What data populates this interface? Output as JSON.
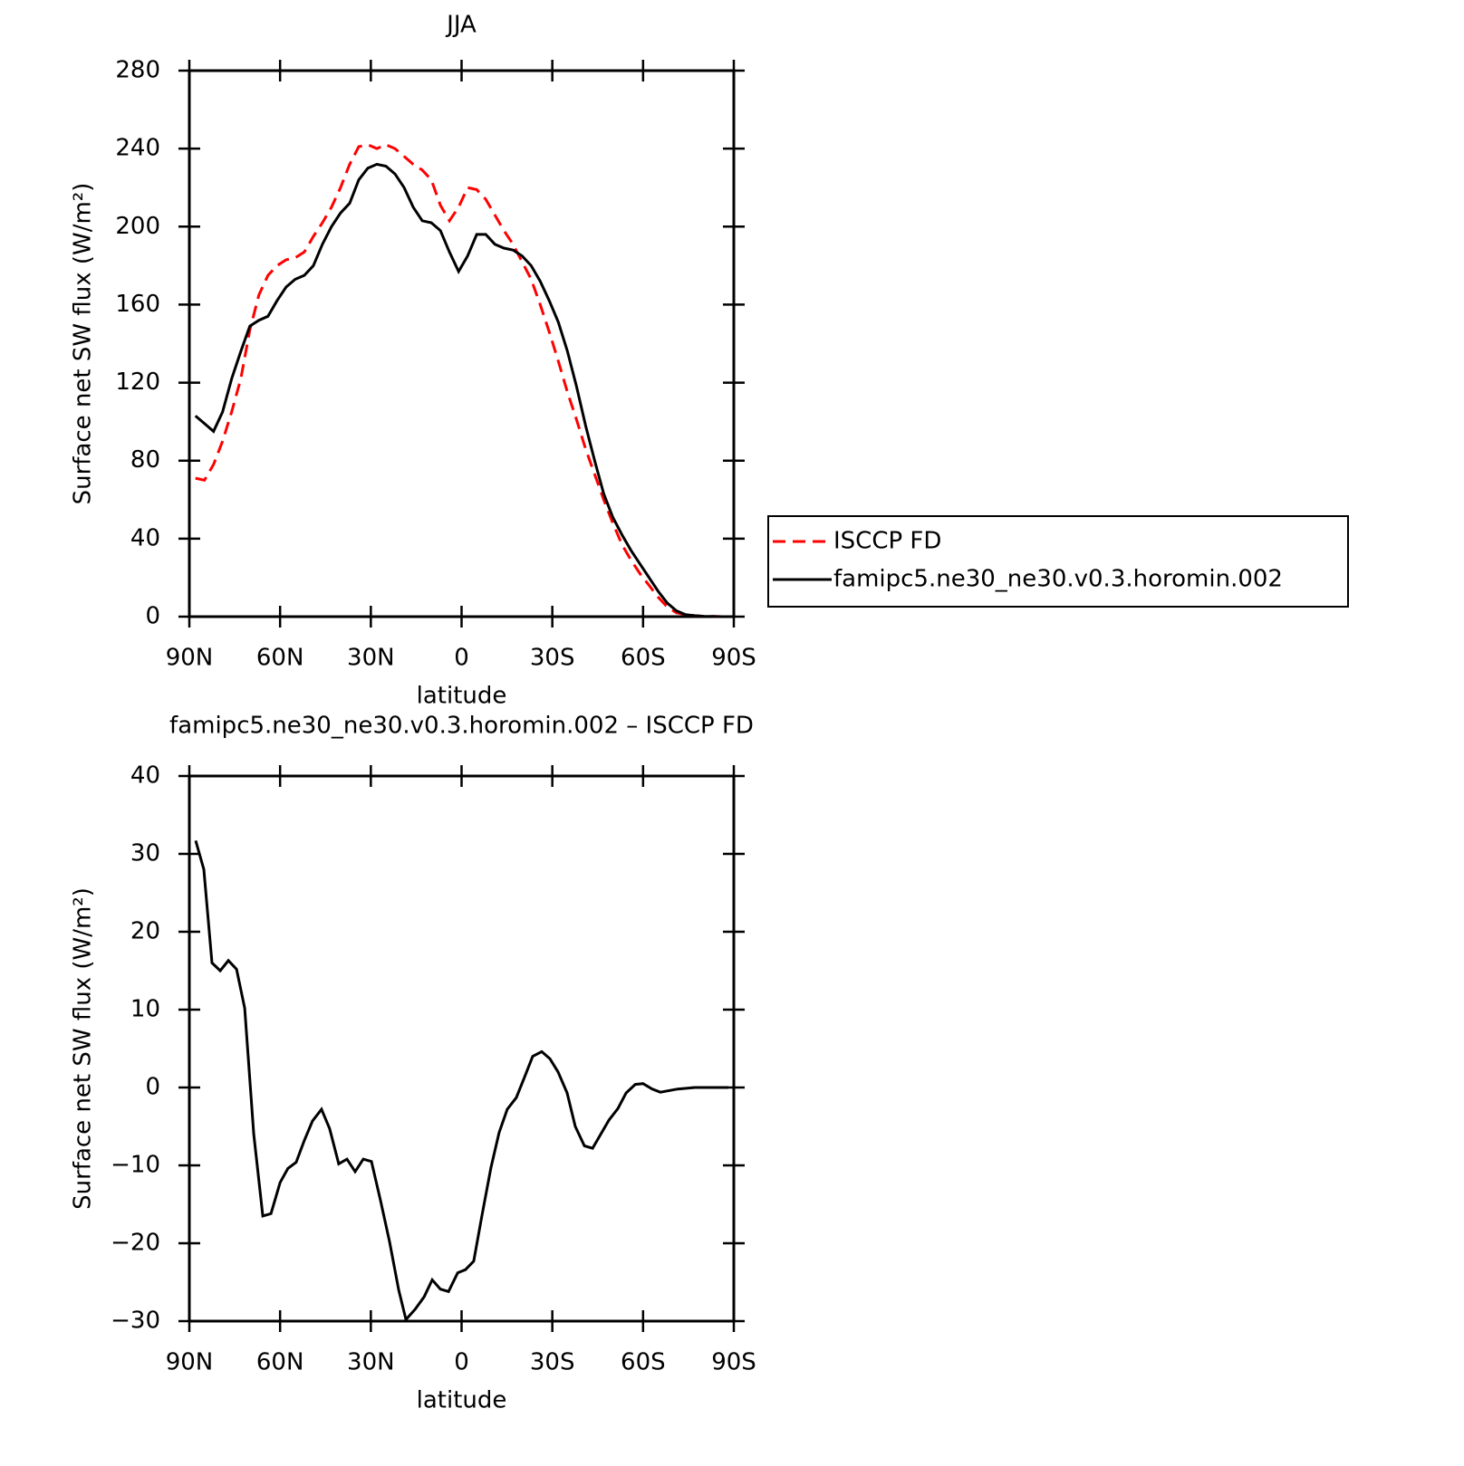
{
  "chart_data": [
    {
      "type": "line",
      "title": "JJA",
      "xlabel": "latitude",
      "ylabel": "Surface net SW flux (W/m²)",
      "xlim": [
        90,
        -90
      ],
      "xticks": [
        {
          "value": 90,
          "label": "90N"
        },
        {
          "value": 60,
          "label": "60N"
        },
        {
          "value": 30,
          "label": "30N"
        },
        0,
        {
          "value": -30,
          "label": "30S"
        },
        {
          "value": -60,
          "label": "60S"
        },
        {
          "value": -90,
          "label": "90S"
        }
      ],
      "ylim": [
        0,
        280
      ],
      "yticks": [
        0,
        40,
        80,
        120,
        160,
        200,
        240,
        280
      ],
      "legend": "right",
      "x": [
        88,
        85,
        82,
        79,
        76,
        73,
        70,
        67,
        64,
        61,
        58,
        55,
        52,
        49,
        46,
        43,
        40,
        37,
        34,
        31,
        28,
        25,
        22,
        19,
        16,
        13,
        10,
        7,
        4,
        1,
        -2,
        -5,
        -8,
        -11,
        -14,
        -17,
        -20,
        -23,
        -26,
        -29,
        -32,
        -35,
        -38,
        -41,
        -44,
        -47,
        -50,
        -53,
        -56,
        -59,
        -62,
        -65,
        -68,
        -71,
        -74,
        -77,
        -80,
        -83,
        -86,
        -88
      ],
      "series": [
        {
          "name": "ISCCP FD",
          "color": "#ff0000",
          "dash": true,
          "values": [
            71,
            70,
            78,
            90,
            105,
            122,
            147,
            165,
            175,
            180,
            183,
            184,
            187,
            195,
            202,
            210,
            220,
            232,
            241,
            242,
            240,
            242,
            240,
            236,
            232,
            229,
            224,
            211,
            203,
            210,
            220,
            219,
            214,
            206,
            198,
            191,
            182,
            173,
            160,
            146,
            131,
            115,
            101,
            86,
            73,
            60,
            48,
            37,
            29,
            22,
            16,
            10,
            5,
            2,
            1,
            0.5,
            0.2,
            0.1,
            0,
            0
          ]
        },
        {
          "name": "famipc5.ne30_ne30.v0.3.horomin.002",
          "color": "#000000",
          "dash": false,
          "values": [
            103,
            99,
            95,
            105,
            122,
            136,
            149,
            152,
            154,
            162,
            169,
            173,
            175,
            180,
            191,
            200,
            207,
            212,
            224,
            230,
            232,
            231,
            227,
            220,
            210,
            203,
            202,
            198,
            187,
            177,
            185,
            196,
            196,
            191,
            189,
            188,
            185,
            180,
            172,
            162,
            151,
            136,
            118,
            98,
            80,
            63,
            51,
            42,
            34,
            27,
            20,
            13,
            7,
            3,
            1,
            0.5,
            0.2,
            0.1,
            0,
            0
          ]
        }
      ]
    },
    {
      "type": "line",
      "title": "famipc5.ne30_ne30.v0.3.horomin.002 – ISCCP FD",
      "xlabel": "latitude",
      "ylabel": "Surface net SW flux (W/m²)",
      "xlim": [
        90,
        -90
      ],
      "xticks": [
        {
          "value": 90,
          "label": "90N"
        },
        {
          "value": 60,
          "label": "60N"
        },
        {
          "value": 30,
          "label": "30N"
        },
        0,
        {
          "value": -30,
          "label": "30S"
        },
        {
          "value": -60,
          "label": "60S"
        },
        {
          "value": -90,
          "label": "90S"
        }
      ],
      "ylim": [
        -30,
        40
      ],
      "yticks": [
        {
          "value": -30,
          "label": "−30"
        },
        {
          "value": -20,
          "label": "−20"
        },
        {
          "value": -10,
          "label": "−10"
        },
        0,
        10,
        20,
        30,
        40
      ],
      "x": [
        87.9,
        85.2,
        82.5,
        79.8,
        77.1,
        74.4,
        71.7,
        68.7,
        65.7,
        63,
        60,
        57.4,
        54.7,
        52,
        49.3,
        46.3,
        43.6,
        40.6,
        37.9,
        35.2,
        32.5,
        29.8,
        26.8,
        23.8,
        20.8,
        18.4,
        15.4,
        12.4,
        9.7,
        7,
        4.3,
        1.3,
        -1.3,
        -4,
        -6.7,
        -9.7,
        -12.4,
        -15.1,
        -18.1,
        -20.8,
        -23.5,
        -26.5,
        -29.2,
        -31.9,
        -34.9,
        -37.6,
        -40.6,
        -43.3,
        -46,
        -48.7,
        -51.7,
        -54.4,
        -57.4,
        -60,
        -63,
        -65.7,
        -71.4,
        -77.1,
        -88.2
      ],
      "series": [
        {
          "color": "#000000",
          "dash": false,
          "values": [
            31.7,
            28,
            16,
            15,
            16.3,
            15.2,
            10.2,
            -6,
            -16.5,
            -16.2,
            -12.2,
            -10.4,
            -9.6,
            -6.8,
            -4.3,
            -2.8,
            -5.3,
            -9.8,
            -9.2,
            -10.8,
            -9.2,
            -9.5,
            -14.5,
            -19.8,
            -26,
            -29.8,
            -28.5,
            -26.9,
            -24.7,
            -25.9,
            -26.2,
            -23.8,
            -23.4,
            -22.3,
            -16.5,
            -10.3,
            -5.8,
            -2.8,
            -1.3,
            1.3,
            4,
            4.6,
            3.7,
            2,
            -0.7,
            -5,
            -7.5,
            -7.8,
            -6,
            -4.2,
            -2.7,
            -0.7,
            0.4,
            0.5,
            -0.2,
            -0.6,
            -0.2,
            0,
            0
          ]
        }
      ]
    }
  ]
}
